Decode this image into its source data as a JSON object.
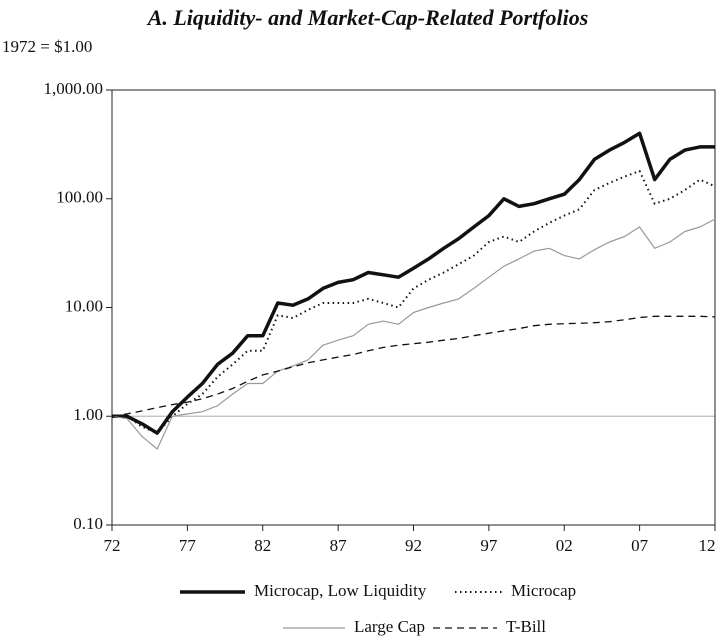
{
  "chart_data": {
    "type": "line",
    "title": "A. Liquidity- and Market-Cap-Related Portfolios",
    "subtitle": "1972 = $1.00",
    "log_scale": true,
    "reference_line": 1,
    "x": [
      1972,
      1973,
      1974,
      1975,
      1976,
      1977,
      1978,
      1979,
      1980,
      1981,
      1982,
      1983,
      1984,
      1985,
      1986,
      1987,
      1988,
      1989,
      1990,
      1991,
      1992,
      1993,
      1994,
      1995,
      1996,
      1997,
      1998,
      1999,
      2000,
      2001,
      2002,
      2003,
      2004,
      2005,
      2006,
      2007,
      2008,
      2009,
      2010,
      2011,
      2012
    ],
    "xlim": [
      1972,
      2012
    ],
    "xticks": [
      {
        "value": 1972,
        "label": "72"
      },
      {
        "value": 1977,
        "label": "77"
      },
      {
        "value": 1982,
        "label": "82"
      },
      {
        "value": 1987,
        "label": "87"
      },
      {
        "value": 1992,
        "label": "92"
      },
      {
        "value": 1997,
        "label": "97"
      },
      {
        "value": 2002,
        "label": "02"
      },
      {
        "value": 2007,
        "label": "07"
      },
      {
        "value": 2012,
        "label": "12"
      }
    ],
    "ylim": [
      0.1,
      1000
    ],
    "yticks": [
      {
        "value": 0.1,
        "label": "0.10"
      },
      {
        "value": 1,
        "label": "1.00"
      },
      {
        "value": 10,
        "label": "10.00"
      },
      {
        "value": 100,
        "label": "100.00"
      },
      {
        "value": 1000,
        "label": "1,000.00"
      }
    ],
    "series": [
      {
        "name": "Microcap, Low Liquidity",
        "color": "#111111",
        "style": "thick",
        "values": [
          1.0,
          1.0,
          0.85,
          0.7,
          1.1,
          1.5,
          2.0,
          3.0,
          3.8,
          5.5,
          5.5,
          11,
          10.5,
          12,
          15,
          17,
          18,
          21,
          20,
          19,
          23,
          28,
          35,
          43,
          55,
          70,
          100,
          85,
          90,
          100,
          110,
          150,
          230,
          280,
          330,
          400,
          150,
          230,
          280,
          300,
          300
        ]
      },
      {
        "name": "Microcap",
        "color": "#111111",
        "style": "dotted",
        "values": [
          1.0,
          1.0,
          0.8,
          0.7,
          1.0,
          1.3,
          1.6,
          2.3,
          3.0,
          4.0,
          4.0,
          8.5,
          8,
          9.5,
          11,
          11,
          11,
          12,
          11,
          10,
          15,
          18,
          21,
          25,
          30,
          40,
          45,
          40,
          50,
          60,
          70,
          80,
          120,
          140,
          160,
          180,
          90,
          100,
          120,
          150,
          130
        ]
      },
      {
        "name": "Large Cap",
        "color": "#999999",
        "style": "thin",
        "values": [
          1.0,
          0.95,
          0.65,
          0.5,
          1.0,
          1.05,
          1.1,
          1.25,
          1.6,
          2.0,
          2.0,
          2.6,
          2.9,
          3.3,
          4.5,
          5,
          5.5,
          7,
          7.5,
          7,
          9,
          10,
          11,
          12,
          15,
          19,
          24,
          28,
          33,
          35,
          30,
          28,
          34,
          40,
          45,
          55,
          35,
          40,
          50,
          55,
          65
        ]
      },
      {
        "name": "T-Bill",
        "color": "#111111",
        "style": "dashed",
        "values": [
          1.0,
          1.05,
          1.12,
          1.2,
          1.28,
          1.35,
          1.45,
          1.6,
          1.8,
          2.1,
          2.4,
          2.6,
          2.85,
          3.1,
          3.3,
          3.5,
          3.7,
          4.0,
          4.3,
          4.5,
          4.65,
          4.8,
          5.0,
          5.2,
          5.5,
          5.8,
          6.1,
          6.4,
          6.8,
          7.0,
          7.1,
          7.15,
          7.25,
          7.4,
          7.7,
          8.1,
          8.3,
          8.3,
          8.3,
          8.3,
          8.2
        ]
      }
    ]
  }
}
